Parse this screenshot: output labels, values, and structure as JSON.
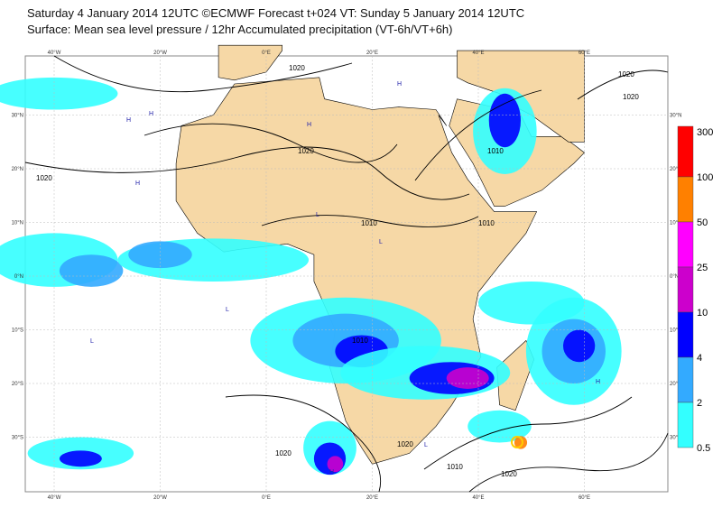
{
  "header": {
    "title": "Saturday 4 January 2014 12UTC ©ECMWF Forecast t+024 VT: Sunday 5 January 2014 12UTC",
    "subtitle": "Surface: Mean sea level pressure / 12hr Accumulated precipitation (VT-6h/VT+6h)"
  },
  "map": {
    "lon_ticks": [
      {
        "value": -40,
        "label": "40°W"
      },
      {
        "value": -20,
        "label": "20°W"
      },
      {
        "value": 0,
        "label": "0°E"
      },
      {
        "value": 20,
        "label": "20°E"
      },
      {
        "value": 40,
        "label": "40°E"
      },
      {
        "value": 60,
        "label": "60°E"
      }
    ],
    "lat_ticks": [
      {
        "value": 30,
        "label": "30°N"
      },
      {
        "value": 20,
        "label": "20°N"
      },
      {
        "value": 10,
        "label": "10°N"
      },
      {
        "value": 0,
        "label": "0°N"
      },
      {
        "value": -10,
        "label": "10°S"
      },
      {
        "value": -20,
        "label": "20°S"
      },
      {
        "value": -30,
        "label": "30°S"
      }
    ],
    "isobar_labels": [
      1020,
      1020,
      1020,
      1020,
      1010,
      1010,
      1010,
      1010,
      1020,
      1020,
      1020,
      1010,
      1020
    ],
    "pressure_centres": [
      "H",
      "H",
      "H",
      "H",
      "L",
      "L",
      "H",
      "L",
      "L",
      "H",
      "L",
      "H"
    ]
  },
  "legend": {
    "levels": [
      300,
      100,
      50,
      25,
      10,
      4,
      2,
      0.5
    ],
    "colors": [
      "#ff0000",
      "#ff8000",
      "#ff00ff",
      "#cc00cc",
      "#0000ff",
      "#33aaff",
      "#33ffff"
    ]
  }
}
